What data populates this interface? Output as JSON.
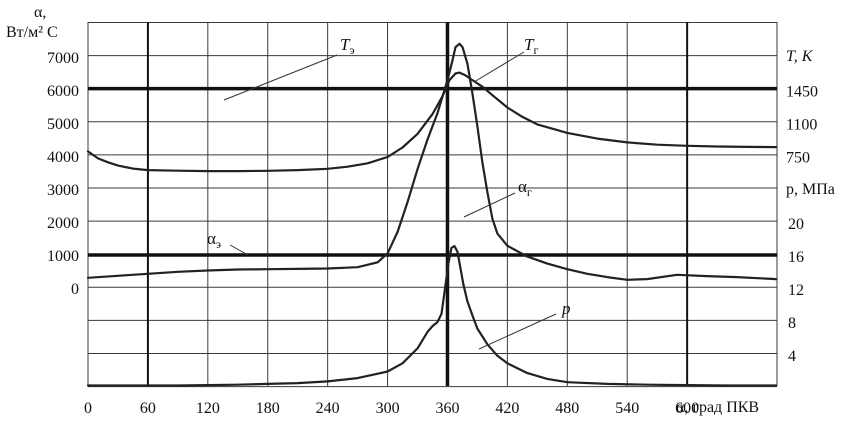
{
  "chart_data": {
    "type": "line",
    "x_axis": {
      "title": "α, град ПКВ",
      "range": [
        0,
        690
      ],
      "ticks": [
        "0",
        "60",
        "120",
        "180",
        "240",
        "300",
        "360",
        "420",
        "480",
        "540",
        "600"
      ],
      "tick_values": [
        0,
        60,
        120,
        180,
        240,
        300,
        360,
        420,
        480,
        540,
        600
      ]
    },
    "left_axis": {
      "title_line1": "α,",
      "title_line2": "Вт/м² С",
      "ticks": [
        "0",
        "1000",
        "2000",
        "3000",
        "4000",
        "5000",
        "6000",
        "7000"
      ],
      "tick_values": [
        0,
        1000,
        2000,
        3000,
        4000,
        5000,
        6000,
        7000
      ]
    },
    "right_axis_T": {
      "title": "T, K",
      "ticks": [
        "750",
        "1100",
        "1450"
      ],
      "tick_values": [
        750,
        1100,
        1450
      ]
    },
    "right_axis_p": {
      "title": "p, МПа",
      "ticks": [
        "4",
        "8",
        "12",
        "16",
        "20"
      ],
      "tick_values": [
        4,
        8,
        12,
        16,
        20
      ]
    },
    "grid": true,
    "series": [
      {
        "name": "Tг",
        "label": "Tг",
        "axis": "T",
        "x": [
          0,
          10,
          20,
          30,
          45,
          60,
          90,
          120,
          150,
          180,
          210,
          240,
          260,
          280,
          300,
          315,
          330,
          345,
          355,
          362,
          368,
          372,
          378,
          385,
          395,
          405,
          420,
          435,
          450,
          480,
          510,
          540,
          570,
          600,
          630,
          660,
          689
        ],
        "y": [
          804,
          730,
          688,
          654,
          622,
          606,
          599,
          595,
          595,
          598,
          606,
          620,
          642,
          678,
          745,
          845,
          990,
          1200,
          1390,
          1560,
          1630,
          1640,
          1610,
          1560,
          1490,
          1400,
          1270,
          1170,
          1090,
          1000,
          940,
          900,
          875,
          863,
          856,
          852,
          850
        ]
      },
      {
        "name": "αг",
        "label": "αг",
        "axis": "alpha",
        "x": [
          0,
          30,
          60,
          90,
          120,
          150,
          180,
          210,
          240,
          270,
          290,
          300,
          310,
          320,
          330,
          340,
          350,
          355,
          360,
          365,
          368,
          372,
          375,
          380,
          385,
          390,
          395,
          400,
          405,
          410,
          420,
          440,
          460,
          480,
          500,
          520,
          540,
          560,
          590,
          620,
          650,
          689
        ],
        "y": [
          310,
          370,
          430,
          490,
          530,
          560,
          570,
          580,
          590,
          630,
          780,
          1050,
          1700,
          2600,
          3600,
          4500,
          5300,
          5800,
          6300,
          6900,
          7300,
          7400,
          7300,
          6800,
          5900,
          4900,
          3800,
          2900,
          2100,
          1650,
          1280,
          950,
          740,
          570,
          430,
          330,
          250,
          270,
          400,
          360,
          330,
          270
        ]
      },
      {
        "name": "p",
        "label": "p",
        "axis": "p",
        "x": [
          0,
          30,
          60,
          90,
          120,
          150,
          180,
          210,
          240,
          270,
          300,
          315,
          330,
          340,
          345,
          350,
          354,
          358,
          361,
          364,
          367,
          370,
          373,
          376,
          380,
          385,
          390,
          400,
          410,
          420,
          440,
          460,
          480,
          520,
          560,
          600,
          640,
          689
        ],
        "y": [
          0.3,
          0.3,
          0.3,
          0.3,
          0.35,
          0.4,
          0.5,
          0.6,
          0.8,
          1.2,
          2.0,
          3.0,
          4.8,
          6.8,
          7.5,
          8.0,
          9.0,
          12.5,
          15.2,
          17.0,
          17.2,
          16.5,
          14.5,
          12.5,
          10.5,
          8.8,
          7.2,
          5.3,
          3.9,
          3.0,
          1.8,
          1.1,
          0.7,
          0.5,
          0.4,
          0.35,
          0.3,
          0.3
        ]
      }
    ],
    "reference_lines": [
      {
        "label": "Tэ",
        "axis": "T",
        "value": 1470
      },
      {
        "label": "αэ",
        "axis": "alpha",
        "value": 1000
      }
    ],
    "vertical_marker": {
      "x": 360
    },
    "annotations": [
      {
        "text": "Tэ"
      },
      {
        "text": "Tг"
      },
      {
        "text": "αг"
      },
      {
        "text": "αэ"
      },
      {
        "text": "p"
      }
    ]
  }
}
